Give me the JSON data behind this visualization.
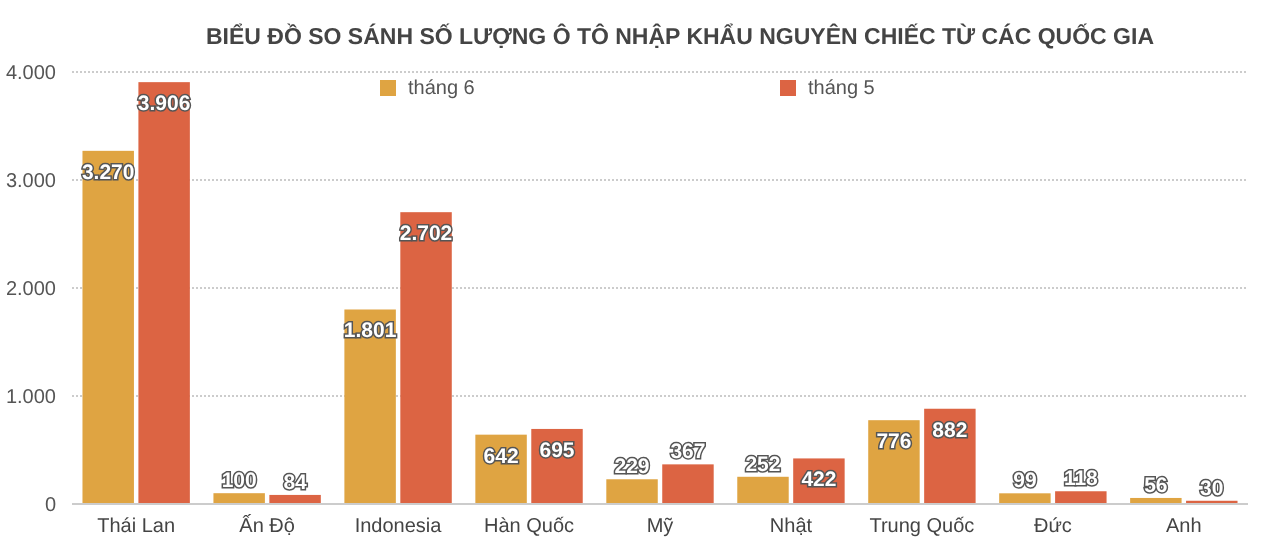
{
  "chart_data": {
    "type": "bar",
    "title": "BIỂU ĐỒ SO SÁNH SỐ LƯỢNG Ô TÔ NHẬP KHẨU NGUYÊN CHIẾC TỪ CÁC QUỐC GIA",
    "categories": [
      "Thái Lan",
      "Ấn Độ",
      "Indonesia",
      "Hàn Quốc",
      "Mỹ",
      "Nhật",
      "Trung Quốc",
      "Đức",
      "Anh"
    ],
    "series": [
      {
        "name": "tháng 6",
        "color": "#dfa442",
        "values": [
          3270,
          100,
          1801,
          642,
          229,
          252,
          776,
          99,
          56
        ],
        "value_labels": [
          "3.270",
          "100",
          "1.801",
          "642",
          "229",
          "252",
          "776",
          "99",
          "56"
        ]
      },
      {
        "name": "tháng 5",
        "color": "#dc6443",
        "values": [
          3906,
          84,
          2702,
          695,
          367,
          422,
          882,
          118,
          30
        ],
        "value_labels": [
          "3.906",
          "84",
          "2.702",
          "695",
          "367",
          "422",
          "882",
          "118",
          "30"
        ]
      }
    ],
    "ylim": [
      0,
      4000
    ],
    "yticks": [
      0,
      {
        "value": 1000,
        "label": "1.000"
      },
      {
        "value": 2000,
        "label": "2.000"
      },
      {
        "value": 3000,
        "label": "3.000"
      },
      {
        "value": 4000,
        "label": "4.000"
      }
    ],
    "grid": "y",
    "legend": "top"
  }
}
